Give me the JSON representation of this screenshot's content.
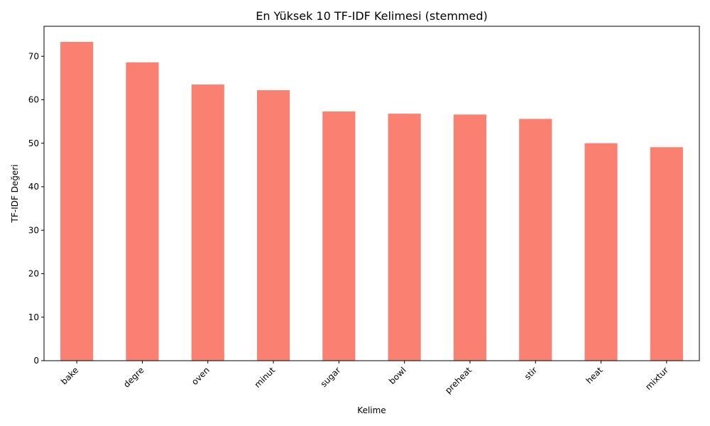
{
  "chart_data": {
    "type": "bar",
    "title": "En Yüksek 10 TF-IDF Kelimesi (stemmed)",
    "xlabel": "Kelime",
    "ylabel": "TF-IDF Değeri",
    "categories": [
      "bake",
      "degre",
      "oven",
      "minut",
      "sugar",
      "bowl",
      "preheat",
      "stir",
      "heat",
      "mixtur"
    ],
    "values": [
      73.3,
      68.6,
      63.5,
      62.2,
      57.3,
      56.8,
      56.6,
      55.6,
      50.0,
      49.1
    ],
    "ylim": [
      0,
      76.9
    ],
    "yticks": [
      0,
      10,
      20,
      30,
      40,
      50,
      60,
      70
    ],
    "bar_color": "#fa8072",
    "grid": false,
    "legend": "none",
    "xtick_rotation": "45"
  }
}
